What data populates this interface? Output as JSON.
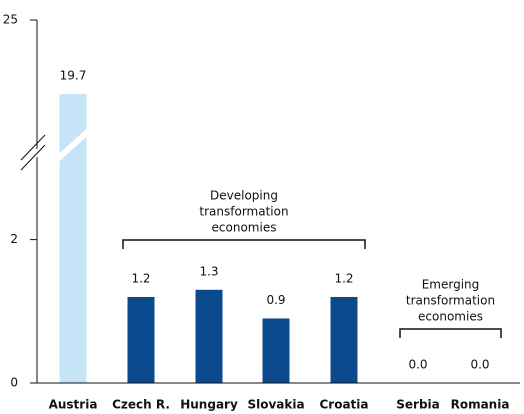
{
  "chart_data": {
    "type": "bar",
    "categories": [
      "Austria",
      "Czech R.",
      "Hungary",
      "Slovakia",
      "Croatia",
      "Serbia",
      "Romania"
    ],
    "values": [
      19.7,
      1.2,
      1.3,
      0.9,
      1.2,
      0.0,
      0.0
    ],
    "value_labels": [
      "19.7",
      "1.2",
      "1.3",
      "0.9",
      "1.2",
      "0.0",
      "0.0"
    ],
    "colors": [
      "#c6e4f7",
      "#0b4a8c",
      "#0b4a8c",
      "#0b4a8c",
      "#0b4a8c",
      "#0b4a8c",
      "#0b4a8c"
    ],
    "ylim": [
      0,
      25
    ],
    "yticks": [
      0,
      2,
      25
    ],
    "ybreak": [
      3.25,
      15.7
    ],
    "groups": [
      {
        "lines": [
          "Developing",
          "transformation",
          "economies"
        ],
        "first": 1,
        "last": 4
      },
      {
        "lines": [
          "Emerging",
          "transformation",
          "economies"
        ],
        "first": 5,
        "last": 6
      }
    ]
  }
}
